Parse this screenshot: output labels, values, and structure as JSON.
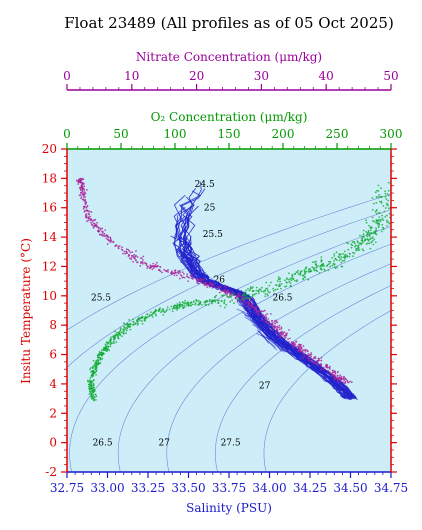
{
  "chart_data": {
    "type": "scatter",
    "title": "Float 23489  (All profiles as of 05 Oct 2025)",
    "xlabel": "Salinity (PSU)",
    "ylabel": "Insitu Temperature (°C)",
    "top_axis_o2_label": "O₂ Concentration (μm/kg)",
    "top_axis_no3_label": "Nitrate Concentration (μm/kg)",
    "xlim": [
      32.75,
      34.75
    ],
    "ylim": [
      -2,
      20
    ],
    "o2_lim": [
      0,
      300
    ],
    "no3_lim": [
      0,
      50
    ],
    "x_ticks": [
      "32.75",
      "33.00",
      "33.25",
      "33.50",
      "33.75",
      "34.00",
      "34.25",
      "34.50",
      "34.75"
    ],
    "y_ticks": [
      "-2",
      "0",
      "2",
      "4",
      "6",
      "8",
      "10",
      "12",
      "14",
      "16",
      "18",
      "20"
    ],
    "o2_ticks": [
      "0",
      "50",
      "100",
      "150",
      "200",
      "250",
      "300"
    ],
    "no3_ticks": [
      "0",
      "10",
      "20",
      "30",
      "40",
      "50"
    ],
    "density_contours": [
      {
        "label": "24.5",
        "s": 33.6,
        "t": 17.6
      },
      {
        "label": "25",
        "s": 33.63,
        "t": 16.0
      },
      {
        "label": "25.5",
        "s": 33.65,
        "t": 14.2
      },
      {
        "label": "26",
        "s": 33.69,
        "t": 11.1
      },
      {
        "label": "26.5",
        "s": 34.08,
        "t": 9.9
      },
      {
        "label": "25.5",
        "s": 32.96,
        "t": 9.9
      },
      {
        "label": "27",
        "s": 33.97,
        "t": 3.9
      },
      {
        "label": "26.5",
        "s": 32.97,
        "t": 0.0
      },
      {
        "label": "27",
        "s": 33.35,
        "t": 0.0
      },
      {
        "label": "27.5",
        "s": 33.76,
        "t": 0.0
      }
    ],
    "series": [
      {
        "kind": "salinity-temperature",
        "color": "#2222cc",
        "points": [
          [
            33.55,
            18.2
          ],
          [
            33.5,
            16.5
          ],
          [
            33.45,
            14.0
          ],
          [
            33.5,
            12.5
          ],
          [
            33.55,
            11.5
          ],
          [
            33.6,
            11.0
          ],
          [
            33.7,
            10.6
          ],
          [
            33.78,
            10.3
          ],
          [
            33.84,
            10.0
          ],
          [
            33.88,
            9.4
          ],
          [
            33.92,
            8.6
          ],
          [
            33.98,
            7.8
          ],
          [
            34.05,
            7.0
          ],
          [
            34.15,
            6.2
          ],
          [
            34.25,
            5.4
          ],
          [
            34.35,
            4.6
          ],
          [
            34.45,
            3.6
          ],
          [
            34.5,
            3.0
          ]
        ]
      },
      {
        "kind": "o2-temperature",
        "color": "#11aa33",
        "points": [
          [
            25,
            3.0
          ],
          [
            22,
            4.0
          ],
          [
            25,
            5.0
          ],
          [
            32,
            6.0
          ],
          [
            42,
            7.0
          ],
          [
            58,
            8.0
          ],
          [
            80,
            8.8
          ],
          [
            110,
            9.4
          ],
          [
            150,
            9.8
          ],
          [
            190,
            10.5
          ],
          [
            220,
            11.6
          ],
          [
            250,
            12.4
          ],
          [
            275,
            13.6
          ],
          [
            290,
            15.0
          ],
          [
            298,
            17.5
          ]
        ]
      },
      {
        "kind": "nitrate-temperature",
        "color": "#aa2299",
        "points": [
          [
            2,
            18.0
          ],
          [
            2.5,
            16.8
          ],
          [
            3.5,
            15.2
          ],
          [
            7,
            13.6
          ],
          [
            12,
            12.2
          ],
          [
            18,
            11.4
          ],
          [
            23,
            10.6
          ],
          [
            28,
            9.6
          ],
          [
            31,
            8.4
          ],
          [
            34,
            7.2
          ],
          [
            37,
            6.0
          ],
          [
            41,
            4.8
          ],
          [
            43,
            4.0
          ]
        ]
      }
    ]
  }
}
